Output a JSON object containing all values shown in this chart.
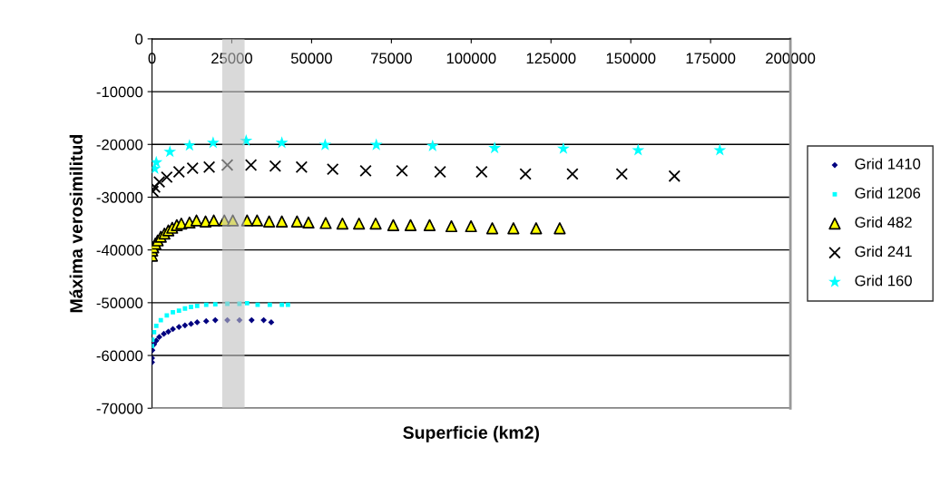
{
  "chart_data": {
    "type": "scatter",
    "xlabel": "Superficie (km2)",
    "ylabel": "Máxima verosimilitud",
    "xlim": [
      0,
      200000
    ],
    "xticks": [
      0,
      25000,
      50000,
      75000,
      100000,
      125000,
      150000,
      175000,
      200000
    ],
    "ylim": [
      -70000,
      0
    ],
    "yticks": [
      -70000,
      -60000,
      -50000,
      -40000,
      -30000,
      -20000,
      -10000,
      0
    ],
    "grid": "y",
    "legend": "right",
    "bands": [
      {
        "axis": "x",
        "from": 22000,
        "to": 29000,
        "color": "#c0c0c0"
      }
    ],
    "series": [
      {
        "name": "Grid 1410",
        "color": "#000080",
        "marker": "diamond",
        "x": [
          0,
          0,
          100,
          650,
          1340,
          2280,
          3700,
          5120,
          6540,
          8450,
          10330,
          12230,
          14140,
          16980,
          19830,
          23610,
          27400,
          31210,
          34990,
          37350
        ],
        "values": [
          -61300,
          -60500,
          -59000,
          -57900,
          -57200,
          -56500,
          -55900,
          -55500,
          -55000,
          -54600,
          -54300,
          -54000,
          -53700,
          -53500,
          -53300,
          -53300,
          -53300,
          -53300,
          -53300,
          -53700
        ]
      },
      {
        "name": "Grid 1206",
        "color": "#00ffff",
        "marker": "square",
        "x": [
          0,
          100,
          650,
          1340,
          2760,
          4640,
          6540,
          8450,
          10330,
          12230,
          14140,
          16980,
          19830,
          23610,
          27400,
          29790,
          33090,
          36900,
          40680,
          42590
        ],
        "values": [
          -58200,
          -57000,
          -55600,
          -54400,
          -53300,
          -52400,
          -51800,
          -51500,
          -51100,
          -50800,
          -50600,
          -50400,
          -50300,
          -50200,
          -50200,
          -50100,
          -50400,
          -50400,
          -50400,
          -50400
        ]
      },
      {
        "name": "Grid 482",
        "color": "#ffff00",
        "marker": "triangle",
        "x": [
          0,
          100,
          400,
          1050,
          1790,
          2760,
          3900,
          5120,
          6340,
          7770,
          9190,
          11750,
          13940,
          16780,
          19350,
          22670,
          25320,
          29790,
          32920,
          36700,
          40680,
          45430,
          49020,
          54420,
          59660,
          64860,
          70070,
          75590,
          81000,
          86970,
          93800,
          99940,
          106600,
          113230,
          120340,
          127740
        ],
        "values": [
          -41100,
          -40100,
          -39500,
          -38800,
          -38200,
          -37500,
          -36900,
          -36300,
          -35800,
          -35300,
          -35000,
          -34800,
          -34400,
          -34600,
          -34400,
          -34400,
          -34400,
          -34400,
          -34400,
          -34600,
          -34600,
          -34600,
          -34800,
          -34900,
          -35000,
          -35000,
          -35000,
          -35300,
          -35300,
          -35300,
          -35500,
          -35500,
          -35900,
          -35900,
          -35900,
          -35900
        ]
      },
      {
        "name": "Grid 241",
        "color": "#000000",
        "marker": "cross",
        "x": [
          300,
          850,
          2280,
          4640,
          8450,
          12720,
          17920,
          23610,
          31010,
          38610,
          46860,
          56620,
          66940,
          78320,
          90270,
          103270,
          117010,
          131720,
          147180,
          163670
        ],
        "values": [
          -28900,
          -28100,
          -27100,
          -26200,
          -25200,
          -24500,
          -24300,
          -23900,
          -23900,
          -24100,
          -24300,
          -24700,
          -25000,
          -25000,
          -25200,
          -25200,
          -25600,
          -25600,
          -25600,
          -26000
        ]
      },
      {
        "name": "Grid 160",
        "color": "#00ffff",
        "marker": "star",
        "x": [
          850,
          1340,
          5600,
          11750,
          19150,
          29500,
          40680,
          54250,
          70270,
          87910,
          107340,
          128880,
          152290,
          177890
        ],
        "values": [
          -24600,
          -23400,
          -21400,
          -20200,
          -19700,
          -19300,
          -19700,
          -20100,
          -20100,
          -20300,
          -20700,
          -20800,
          -21100,
          -21100
        ]
      }
    ]
  }
}
